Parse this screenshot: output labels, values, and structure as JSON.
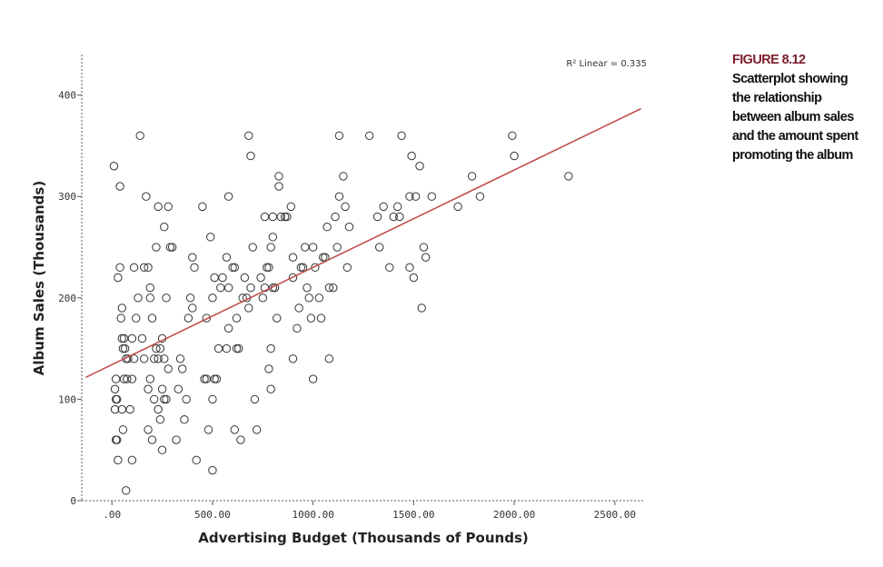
{
  "caption": {
    "figure_label": "FIGURE 8.12",
    "text": "Scatterplot showing the relationship between album sales and the amount spent promoting the album"
  },
  "colors": {
    "fit_line": "#c0504d",
    "points": "#333333",
    "axis": "#555555"
  },
  "chart_data": {
    "type": "scatter",
    "xlabel": "Advertising Budget (Thousands of Pounds)",
    "ylabel": "Album Sales (Thousands)",
    "xlim": [
      -150,
      2650
    ],
    "ylim": [
      0,
      440
    ],
    "xticks": [
      0,
      500,
      1000,
      1500,
      2000,
      2500
    ],
    "xtick_labels": [
      ".00",
      "500.00",
      "1000.00",
      "1500.00",
      "2000.00",
      "2500.00"
    ],
    "yticks": [
      0,
      100,
      200,
      300,
      400
    ],
    "ytick_labels": [
      "0",
      "100",
      "200",
      "300",
      "400"
    ],
    "grid": false,
    "fit_line": {
      "label": "R² Linear = 0.335",
      "intercept": 134.1,
      "slope": 0.096
    },
    "points": [
      [
        10,
        330
      ],
      [
        40,
        310
      ],
      [
        30,
        220
      ],
      [
        40,
        230
      ],
      [
        50,
        190
      ],
      [
        45,
        180
      ],
      [
        50,
        160
      ],
      [
        60,
        160
      ],
      [
        55,
        150
      ],
      [
        65,
        150
      ],
      [
        70,
        140
      ],
      [
        80,
        140
      ],
      [
        75,
        120
      ],
      [
        60,
        120
      ],
      [
        20,
        120
      ],
      [
        15,
        110
      ],
      [
        20,
        100
      ],
      [
        25,
        100
      ],
      [
        15,
        90
      ],
      [
        50,
        90
      ],
      [
        55,
        70
      ],
      [
        20,
        60
      ],
      [
        25,
        60
      ],
      [
        30,
        40
      ],
      [
        70,
        10
      ],
      [
        100,
        40
      ],
      [
        90,
        90
      ],
      [
        100,
        120
      ],
      [
        110,
        140
      ],
      [
        100,
        160
      ],
      [
        120,
        180
      ],
      [
        130,
        200
      ],
      [
        110,
        230
      ],
      [
        140,
        360
      ],
      [
        160,
        230
      ],
      [
        170,
        300
      ],
      [
        150,
        160
      ],
      [
        160,
        140
      ],
      [
        190,
        120
      ],
      [
        180,
        110
      ],
      [
        210,
        100
      ],
      [
        180,
        70
      ],
      [
        200,
        60
      ],
      [
        230,
        90
      ],
      [
        240,
        80
      ],
      [
        220,
        150
      ],
      [
        240,
        150
      ],
      [
        250,
        160
      ],
      [
        210,
        140
      ],
      [
        230,
        140
      ],
      [
        260,
        140
      ],
      [
        280,
        130
      ],
      [
        220,
        250
      ],
      [
        230,
        290
      ],
      [
        260,
        270
      ],
      [
        290,
        250
      ],
      [
        300,
        250
      ],
      [
        280,
        290
      ],
      [
        250,
        110
      ],
      [
        260,
        100
      ],
      [
        270,
        100
      ],
      [
        250,
        50
      ],
      [
        270,
        200
      ],
      [
        200,
        180
      ],
      [
        190,
        200
      ],
      [
        180,
        230
      ],
      [
        190,
        210
      ],
      [
        340,
        140
      ],
      [
        350,
        130
      ],
      [
        330,
        110
      ],
      [
        320,
        60
      ],
      [
        360,
        80
      ],
      [
        370,
        100
      ],
      [
        380,
        180
      ],
      [
        390,
        200
      ],
      [
        400,
        190
      ],
      [
        400,
        240
      ],
      [
        410,
        230
      ],
      [
        420,
        40
      ],
      [
        450,
        290
      ],
      [
        460,
        120
      ],
      [
        470,
        120
      ],
      [
        470,
        180
      ],
      [
        480,
        70
      ],
      [
        500,
        30
      ],
      [
        500,
        100
      ],
      [
        510,
        120
      ],
      [
        520,
        120
      ],
      [
        530,
        150
      ],
      [
        500,
        200
      ],
      [
        510,
        220
      ],
      [
        490,
        260
      ],
      [
        540,
        210
      ],
      [
        550,
        220
      ],
      [
        570,
        240
      ],
      [
        570,
        150
      ],
      [
        580,
        170
      ],
      [
        580,
        210
      ],
      [
        580,
        300
      ],
      [
        600,
        230
      ],
      [
        610,
        230
      ],
      [
        620,
        180
      ],
      [
        620,
        150
      ],
      [
        630,
        150
      ],
      [
        610,
        70
      ],
      [
        640,
        60
      ],
      [
        650,
        200
      ],
      [
        660,
        220
      ],
      [
        670,
        200
      ],
      [
        680,
        190
      ],
      [
        690,
        210
      ],
      [
        680,
        360
      ],
      [
        690,
        340
      ],
      [
        700,
        250
      ],
      [
        710,
        100
      ],
      [
        720,
        70
      ],
      [
        740,
        220
      ],
      [
        750,
        200
      ],
      [
        760,
        210
      ],
      [
        760,
        280
      ],
      [
        770,
        230
      ],
      [
        780,
        230
      ],
      [
        790,
        250
      ],
      [
        800,
        260
      ],
      [
        800,
        210
      ],
      [
        810,
        210
      ],
      [
        790,
        150
      ],
      [
        780,
        130
      ],
      [
        790,
        110
      ],
      [
        800,
        280
      ],
      [
        820,
        180
      ],
      [
        830,
        320
      ],
      [
        830,
        310
      ],
      [
        840,
        280
      ],
      [
        860,
        280
      ],
      [
        870,
        280
      ],
      [
        890,
        290
      ],
      [
        900,
        220
      ],
      [
        900,
        240
      ],
      [
        920,
        170
      ],
      [
        930,
        190
      ],
      [
        940,
        230
      ],
      [
        950,
        230
      ],
      [
        960,
        250
      ],
      [
        970,
        210
      ],
      [
        980,
        200
      ],
      [
        990,
        180
      ],
      [
        1000,
        250
      ],
      [
        1010,
        230
      ],
      [
        900,
        140
      ],
      [
        1000,
        120
      ],
      [
        1030,
        200
      ],
      [
        1040,
        180
      ],
      [
        1050,
        240
      ],
      [
        1060,
        240
      ],
      [
        1070,
        270
      ],
      [
        1080,
        210
      ],
      [
        1080,
        140
      ],
      [
        1100,
        210
      ],
      [
        1110,
        280
      ],
      [
        1120,
        250
      ],
      [
        1130,
        300
      ],
      [
        1130,
        360
      ],
      [
        1150,
        320
      ],
      [
        1160,
        290
      ],
      [
        1170,
        230
      ],
      [
        1180,
        270
      ],
      [
        1280,
        360
      ],
      [
        1320,
        280
      ],
      [
        1330,
        250
      ],
      [
        1350,
        290
      ],
      [
        1380,
        230
      ],
      [
        1400,
        280
      ],
      [
        1420,
        290
      ],
      [
        1430,
        280
      ],
      [
        1440,
        360
      ],
      [
        1480,
        300
      ],
      [
        1480,
        230
      ],
      [
        1490,
        340
      ],
      [
        1500,
        220
      ],
      [
        1510,
        300
      ],
      [
        1530,
        330
      ],
      [
        1540,
        190
      ],
      [
        1550,
        250
      ],
      [
        1560,
        240
      ],
      [
        1590,
        300
      ],
      [
        1720,
        290
      ],
      [
        1790,
        320
      ],
      [
        1830,
        300
      ],
      [
        1990,
        360
      ],
      [
        2000,
        340
      ],
      [
        2270,
        320
      ]
    ]
  }
}
